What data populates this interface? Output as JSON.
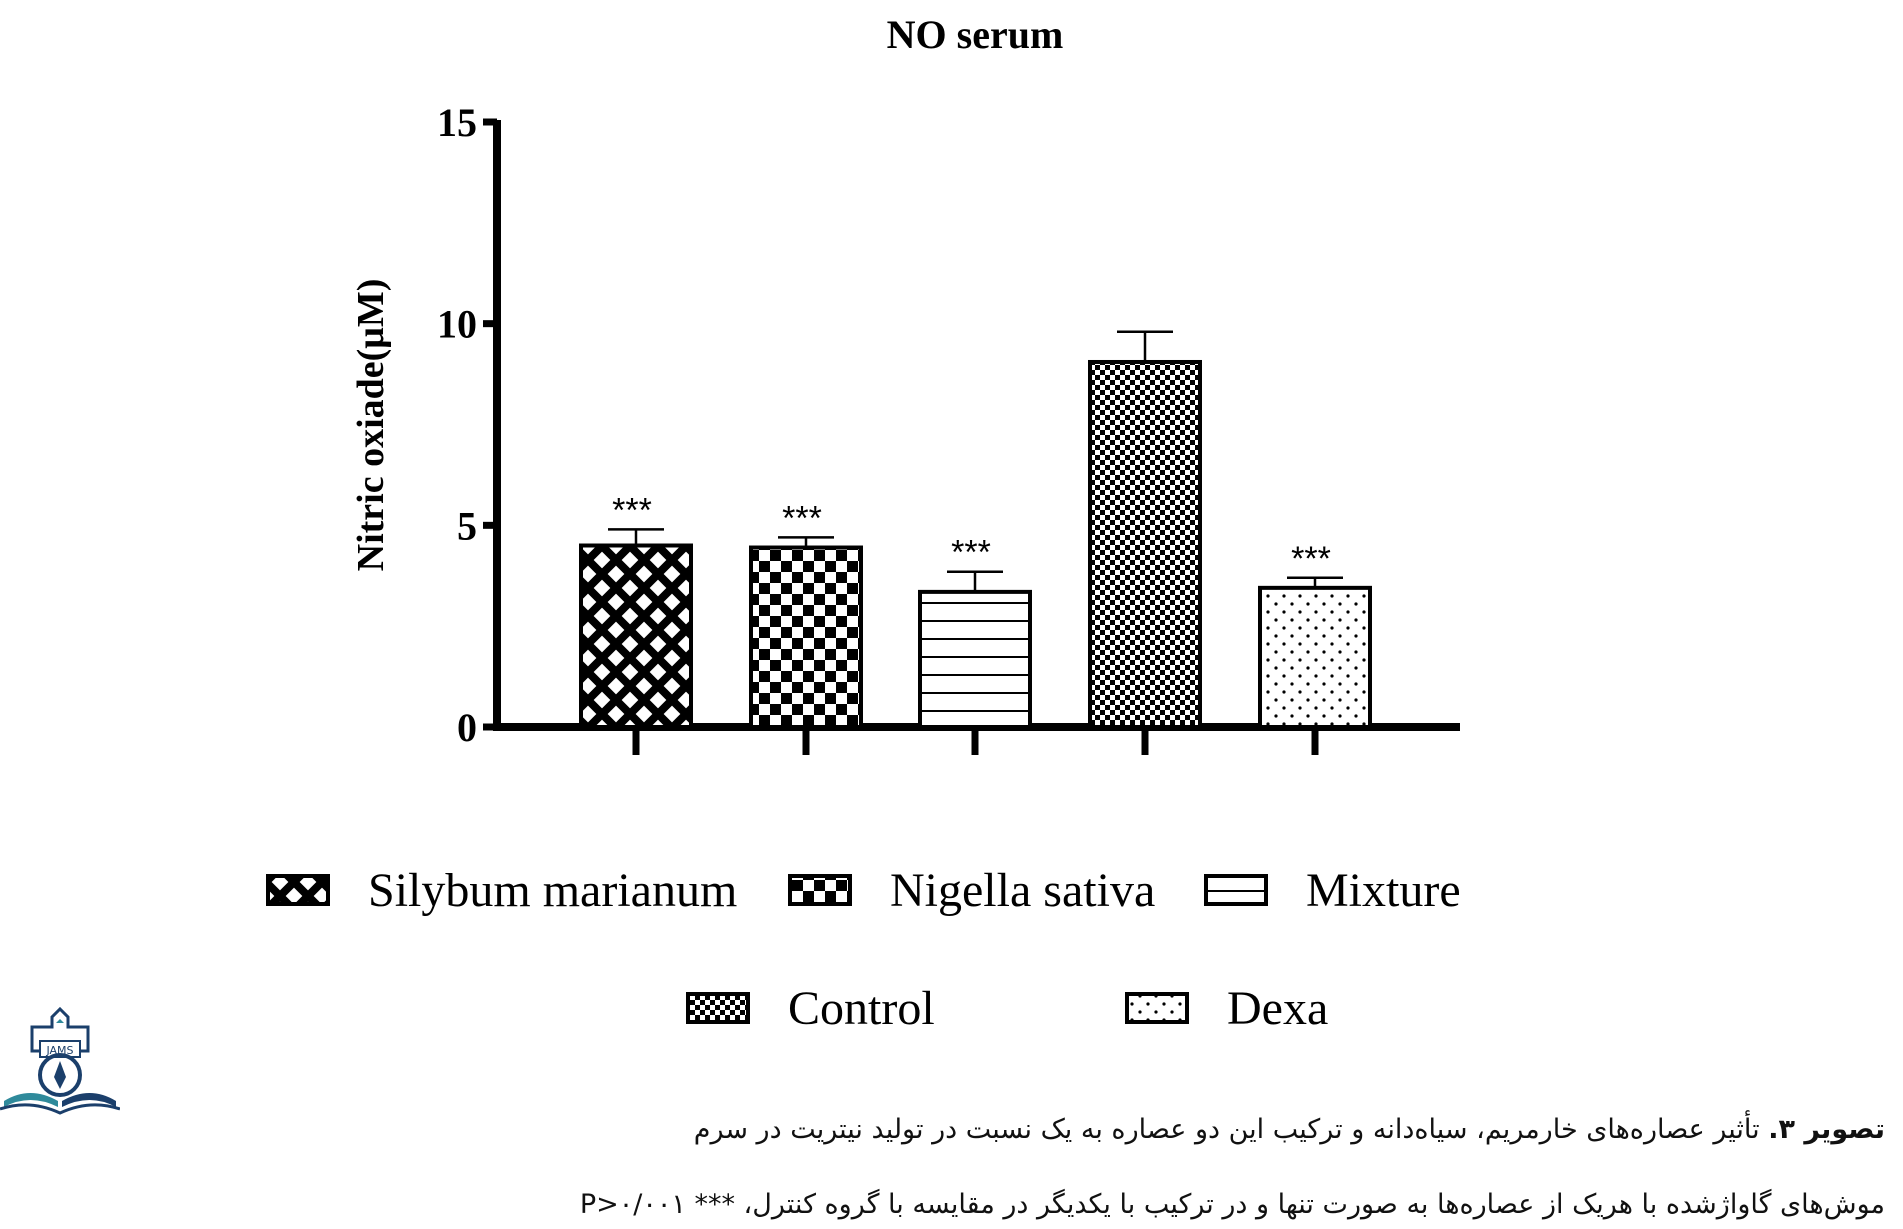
{
  "chart_data": {
    "type": "bar",
    "title": "NO serum",
    "ylabel": "Nitric oxiade(μM)",
    "xlabel": "",
    "ylim": [
      0,
      15
    ],
    "yticks": [
      0,
      5,
      10,
      15
    ],
    "categories": [
      "Silybum marianum",
      "Nigella sativa",
      "Mixture",
      "Control",
      "Dexa"
    ],
    "values": [
      4.5,
      4.45,
      3.35,
      9.05,
      3.45
    ],
    "errors": [
      0.4,
      0.25,
      0.5,
      0.75,
      0.25
    ],
    "significance": [
      "***",
      "***",
      "***",
      "",
      "***"
    ],
    "patterns": [
      "crosshatch",
      "checker",
      "horizontal-lines",
      "fine-checker",
      "dots"
    ],
    "legend": [
      {
        "label": "Silybum marianum",
        "pattern": "crosshatch"
      },
      {
        "label": "Nigella sativa",
        "pattern": "checker"
      },
      {
        "label": "Mixture",
        "pattern": "horizontal-lines"
      },
      {
        "label": "Control",
        "pattern": "fine-checker"
      },
      {
        "label": "Dexa",
        "pattern": "dots"
      }
    ],
    "legend_placement": "bottom",
    "grid": false
  },
  "logo": {
    "text": "JAMS"
  },
  "caption": {
    "figure_label": "تصویر ۳.",
    "line1_rest": "تأثیر عصاره‌های خارمریم، سیاه‌دانه و ترکیب این دو عصاره به یک نسبت در تولید نیتریت در سرم",
    "line2": "موش‌های گاواژشده با هریک از عصاره‌ها به صورت تنها و در ترکیب با یکدیگر در مقایسه با گروه کنترل، *** P>۰/۰۰۱"
  },
  "colors": {
    "ink": "#000000",
    "background": "#ffffff",
    "logo_blue": "#1b3f6b",
    "logo_teal": "#2f8a9b"
  }
}
